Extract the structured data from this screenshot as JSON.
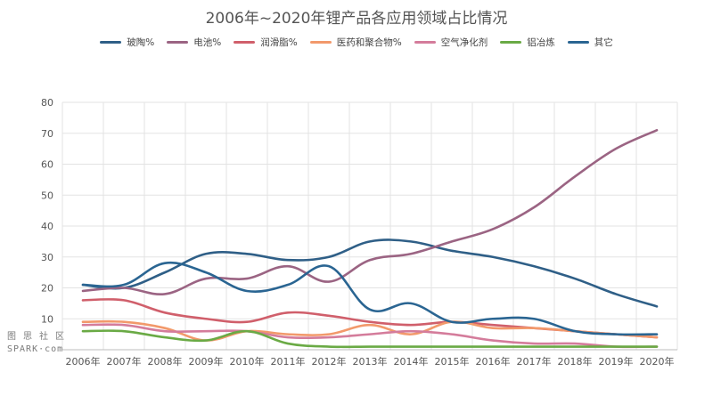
{
  "chart_data": {
    "type": "line",
    "title": "2006年~2020年锂产品各应用领域占比情况",
    "categories": [
      "2006年",
      "2007年",
      "2008年",
      "2009年",
      "2010年",
      "2011年",
      "2012年",
      "2013年",
      "2014年",
      "2015年",
      "2016年",
      "2017年",
      "2018年",
      "2019年",
      "2020年"
    ],
    "ylim": [
      0,
      80
    ],
    "yticks": [
      10,
      20,
      30,
      40,
      50,
      60,
      70,
      80
    ],
    "grid": true,
    "legend_position": "top",
    "series": [
      {
        "name": "玻陶%",
        "color": "#2f5f87",
        "values": [
          21,
          20,
          25,
          31,
          31,
          29,
          30,
          35,
          35,
          32,
          30,
          27,
          23,
          18,
          14
        ]
      },
      {
        "name": "电池%",
        "color": "#9b6483",
        "values": [
          19,
          20,
          18,
          23,
          23,
          27,
          22,
          29,
          31,
          35,
          39,
          46,
          56,
          65,
          71
        ]
      },
      {
        "name": "润滑脂%",
        "color": "#d05f6b",
        "values": [
          16,
          16,
          12,
          10,
          9,
          12,
          11,
          9,
          8,
          9,
          8,
          7,
          6,
          5,
          4
        ]
      },
      {
        "name": "医药和聚合物%",
        "color": "#f2996b",
        "values": [
          9,
          9,
          7,
          3,
          6,
          5,
          5,
          8,
          5,
          9,
          7,
          7,
          6,
          5,
          4
        ]
      },
      {
        "name": "空气净化剂",
        "color": "#d47c9b",
        "values": [
          8,
          8,
          6,
          6,
          6,
          4,
          4,
          5,
          6,
          5,
          3,
          2,
          2,
          1,
          1
        ]
      },
      {
        "name": "铝冶炼",
        "color": "#6aaa45",
        "values": [
          6,
          6,
          4,
          3,
          6,
          2,
          1,
          1,
          1,
          1,
          1,
          1,
          1,
          1,
          1
        ]
      },
      {
        "name": "其它",
        "color": "#2a6592",
        "values": [
          21,
          21,
          28,
          25,
          19,
          21,
          27,
          13,
          15,
          9,
          10,
          10,
          6,
          5,
          5
        ]
      }
    ]
  },
  "watermark": {
    "line1": "图 思 社 区",
    "line2": "SPARK·com"
  }
}
